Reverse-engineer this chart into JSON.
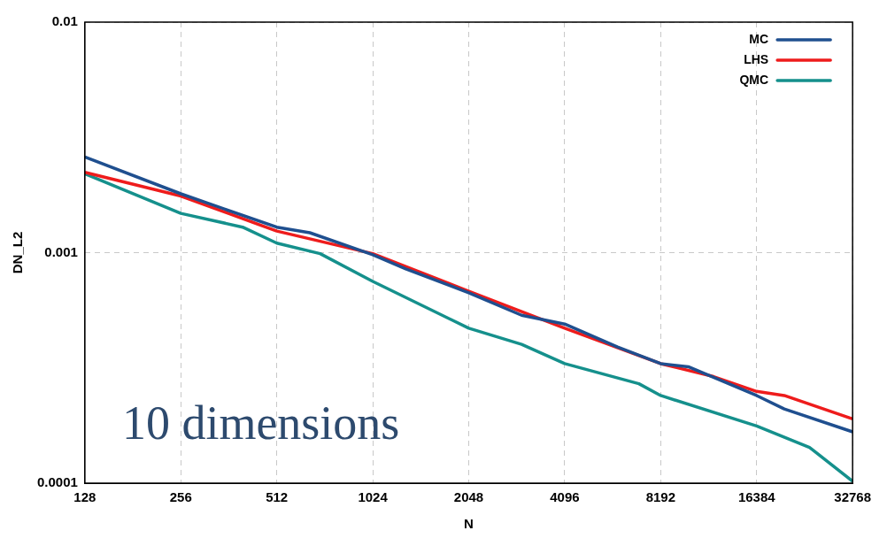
{
  "chart_data": {
    "type": "line",
    "xlabel": "N",
    "ylabel": "DN_L2",
    "log": "xy",
    "grid": true,
    "legend": "top right",
    "marker": "none",
    "line_style": "solid",
    "xlim": [
      128,
      32768
    ],
    "xticks": [
      128,
      256,
      512,
      1024,
      2048,
      4096,
      8192,
      16384,
      32768
    ],
    "ylim": [
      0.0001,
      0.01
    ],
    "yticks": [
      0.0001,
      0.001,
      0.01
    ],
    "annotations": [
      "10 dimensions"
    ],
    "series": [
      {
        "name": "MC",
        "color": "#1f4f8f",
        "x": [
          128,
          256,
          512,
          650,
          1024,
          1300,
          2048,
          3000,
          4096,
          6000,
          8192,
          10000,
          16384,
          20000,
          32768
        ],
        "values": [
          0.0026,
          0.0018,
          0.00129,
          0.00122,
          0.00098,
          0.00085,
          0.00067,
          0.000535,
          0.00049,
          0.00039,
          0.00033,
          0.00032,
          0.00024,
          0.00021,
          0.000167
        ]
      },
      {
        "name": "LHS",
        "color": "#ee1c1c",
        "x": [
          128,
          256,
          512,
          1024,
          2048,
          4096,
          8192,
          12000,
          16384,
          20000,
          32768
        ],
        "values": [
          0.00223,
          0.00176,
          0.00124,
          0.00099,
          0.00068,
          0.00047,
          0.00033,
          0.00029,
          0.00025,
          0.00024,
          0.00019
        ]
      },
      {
        "name": "QMC",
        "color": "#15908c",
        "x": [
          128,
          256,
          400,
          512,
          700,
          1024,
          2048,
          3000,
          4096,
          7000,
          8192,
          16384,
          24000,
          32768
        ],
        "values": [
          0.0022,
          0.00148,
          0.00129,
          0.0011,
          0.00099,
          0.00075,
          0.00047,
          0.0004,
          0.00033,
          0.00027,
          0.00024,
          0.000177,
          0.000143,
          0.000102
        ]
      }
    ]
  }
}
